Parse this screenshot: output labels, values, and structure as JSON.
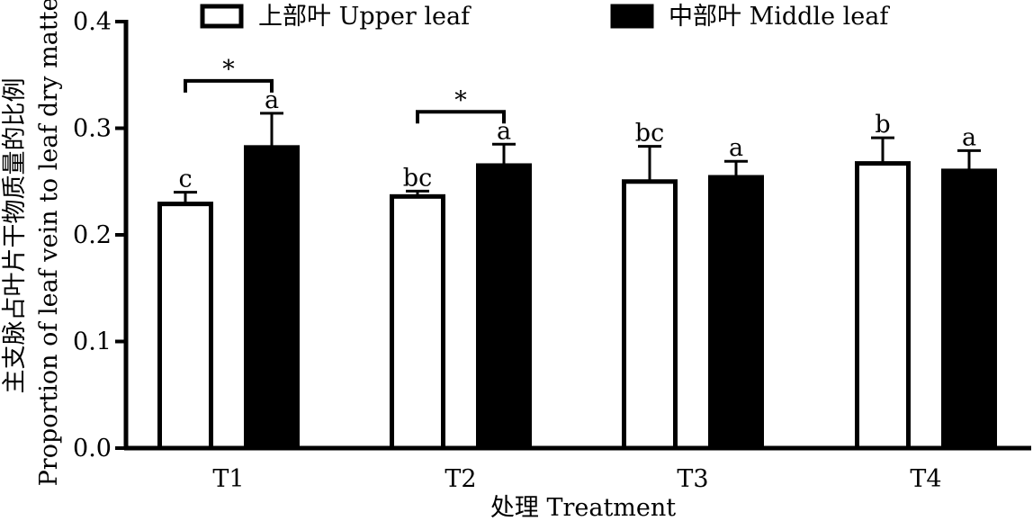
{
  "chart_data": {
    "type": "bar",
    "categories": [
      "T1",
      "T2",
      "T3",
      "T4"
    ],
    "series": [
      {
        "name": "上部叶  Upper leaf",
        "fill": "#ffffff",
        "values": [
          0.229,
          0.236,
          0.25,
          0.267
        ],
        "errors": [
          0.011,
          0.005,
          0.033,
          0.024
        ],
        "letters": [
          "c",
          "bc",
          "bc",
          "b"
        ]
      },
      {
        "name": "中部叶  Middle leaf",
        "fill": "#000000",
        "values": [
          0.282,
          0.265,
          0.254,
          0.26
        ],
        "errors": [
          0.032,
          0.02,
          0.015,
          0.019
        ],
        "letters": [
          "a",
          "a",
          "a",
          "a"
        ]
      }
    ],
    "significance": [
      {
        "category": "T1",
        "mark": "*"
      },
      {
        "category": "T2",
        "mark": "*"
      }
    ],
    "xlabel": "处理  Treatment",
    "ylabel_cn": "主支脉占叶片干物质量的比例",
    "ylabel_en": "Proportion of leaf vein to leaf dry matter",
    "ylim": [
      0,
      0.4
    ],
    "yticks": [
      "0.0",
      "0.1",
      "0.2",
      "0.3",
      "0.4"
    ],
    "legend_position": "top",
    "grid": false
  }
}
